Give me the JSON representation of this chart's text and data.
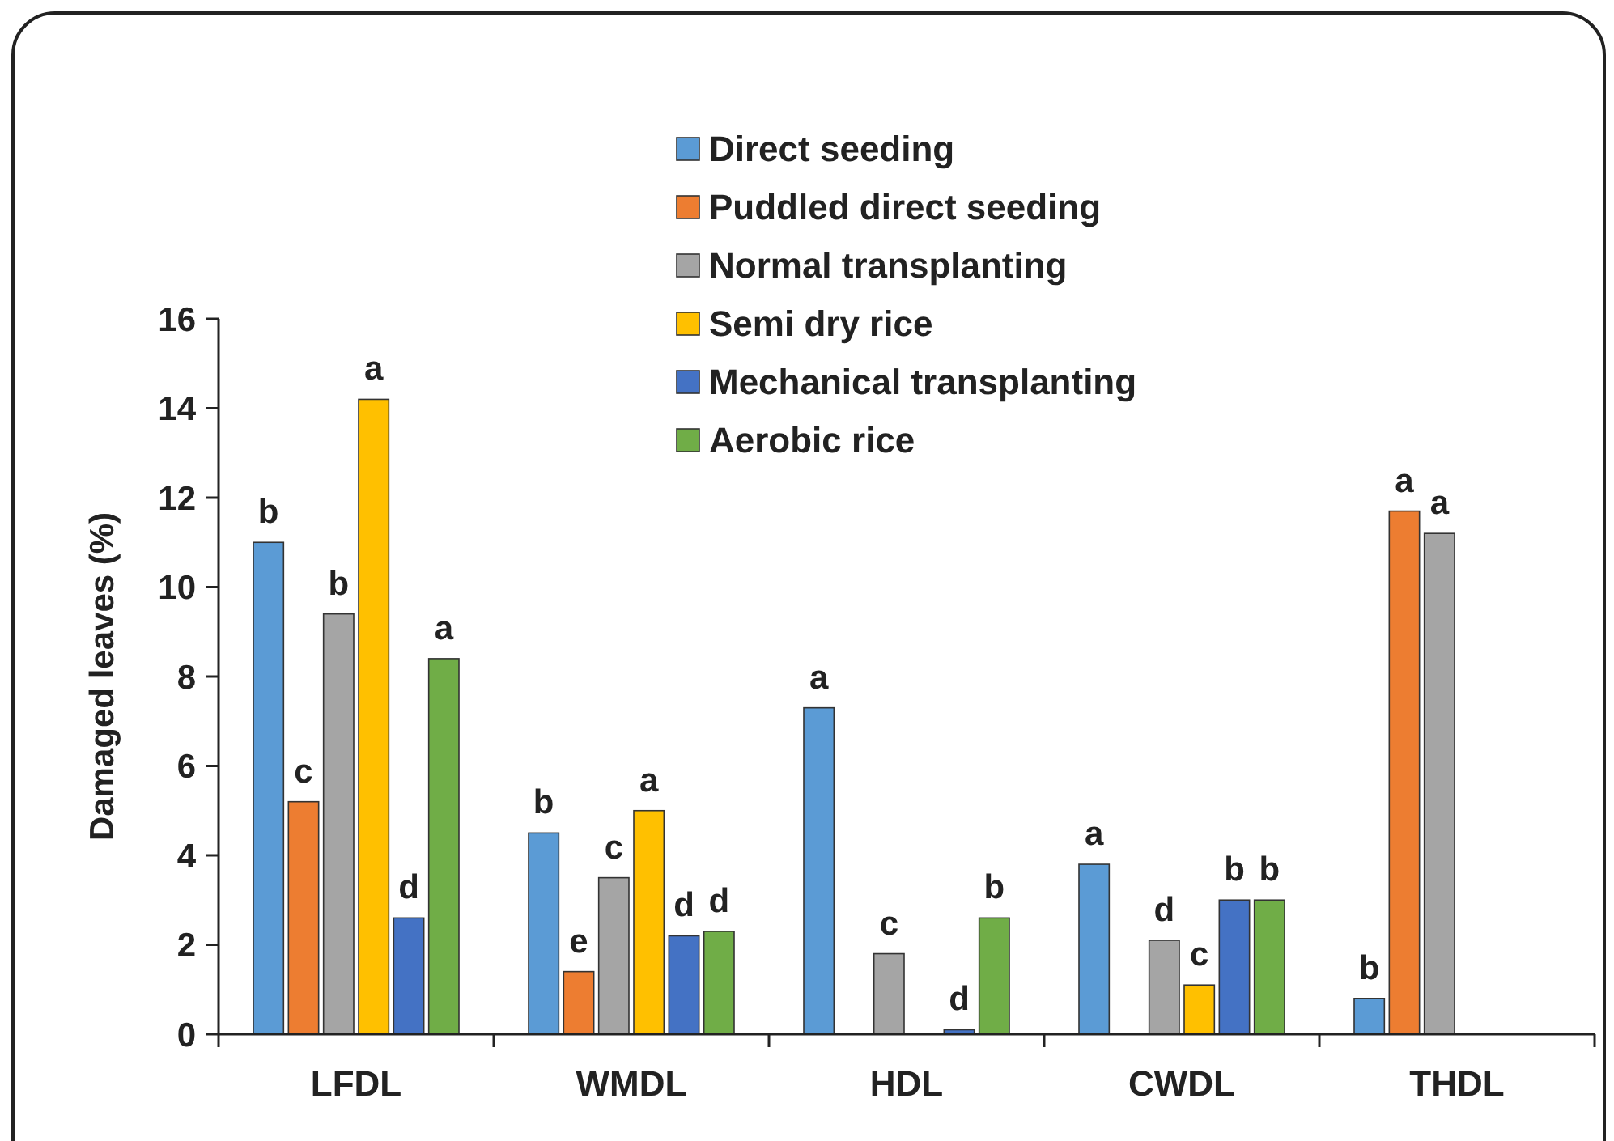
{
  "chart_data": {
    "type": "bar",
    "ylabel": "Damaged leaves (%)",
    "categories": [
      "LFDL",
      "WMDL",
      "HDL",
      "CWDL",
      "THDL"
    ],
    "series": [
      {
        "name": "Direct seeding",
        "color": "#5b9bd5",
        "values": [
          11.0,
          4.5,
          7.3,
          3.8,
          0.8
        ],
        "value_labels": [
          "b",
          "b",
          "a",
          "a",
          "b"
        ]
      },
      {
        "name": "Puddled direct seeding",
        "color": "#ed7d31",
        "values": [
          5.2,
          1.4,
          null,
          null,
          11.7
        ],
        "value_labels": [
          "c",
          "e",
          null,
          null,
          "a"
        ]
      },
      {
        "name": "Normal transplanting",
        "color": "#a5a5a5",
        "values": [
          9.4,
          3.5,
          1.8,
          2.1,
          11.2
        ],
        "value_labels": [
          "b",
          "c",
          "c",
          "d",
          "a"
        ]
      },
      {
        "name": "Semi dry rice",
        "color": "#ffc000",
        "values": [
          14.2,
          5.0,
          null,
          1.1,
          null
        ],
        "value_labels": [
          "a",
          "a",
          null,
          "c",
          null
        ]
      },
      {
        "name": "Mechanical transplanting",
        "color": "#4472c4",
        "values": [
          2.6,
          2.2,
          0.1,
          3.0,
          null
        ],
        "value_labels": [
          "d",
          "d",
          "d",
          "b",
          null
        ]
      },
      {
        "name": "Aerobic rice",
        "color": "#70ad47",
        "values": [
          8.4,
          2.3,
          2.6,
          3.0,
          null
        ],
        "value_labels": [
          "a",
          "d",
          "b",
          "b",
          null
        ]
      }
    ],
    "ylim": [
      0,
      16
    ],
    "yticks": [
      0,
      2,
      4,
      6,
      8,
      10,
      12,
      14,
      16
    ],
    "grid": false,
    "legend": "top"
  }
}
